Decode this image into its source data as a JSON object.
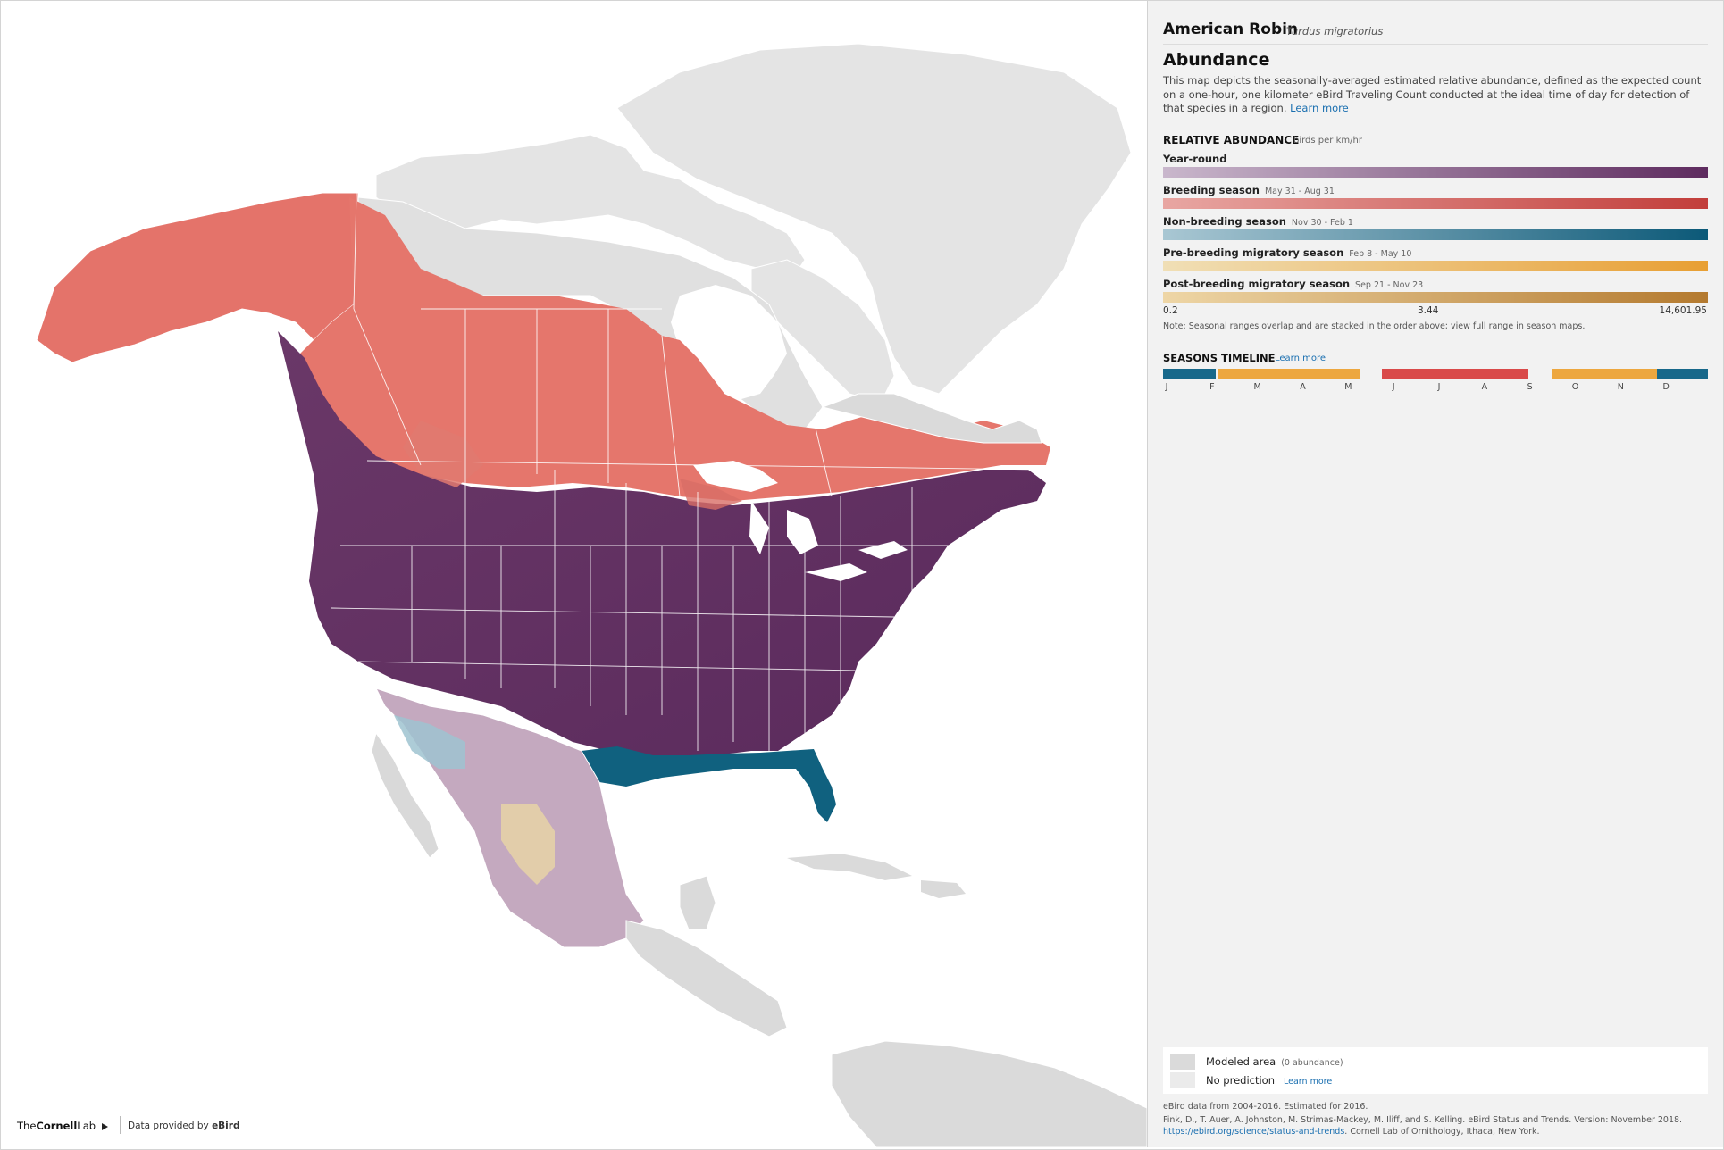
{
  "species": {
    "common_name": "American Robin",
    "scientific_name": "Turdus migratorius"
  },
  "product": {
    "title": "Abundance",
    "description": "This map depicts the seasonally-averaged estimated relative abundance, defined as the expected count on a one-hour, one kilometer eBird Traveling Count conducted at the ideal time of day for detection of that species in a region.",
    "learn_more": "Learn more"
  },
  "legend": {
    "title": "RELATIVE ABUNDANCE",
    "unit": "birds per km/hr",
    "seasons": [
      {
        "label": "Year-round",
        "dates": "",
        "color_low": "#c9b7cc",
        "color_high": "#5e2b5f"
      },
      {
        "label": "Breeding season",
        "dates": "May 31 - Aug 31",
        "color_low": "#e8a6a2",
        "color_high": "#c23e3b"
      },
      {
        "label": "Non-breeding season",
        "dates": "Nov 30 - Feb 1",
        "color_low": "#a9c7d3",
        "color_high": "#0c5978"
      },
      {
        "label": "Pre-breeding migratory season",
        "dates": "Feb 8 - May 10",
        "color_low": "#f0dfb6",
        "color_high": "#e89f33"
      },
      {
        "label": "Post-breeding migratory season",
        "dates": "Sep 21 - Nov 23",
        "color_low": "#eed6a6",
        "color_high": "#b47a2f"
      }
    ],
    "ticks": [
      "0.2",
      "3.44",
      "14,601.95"
    ],
    "note": "Note: Seasonal ranges overlap and are stacked in the order above; view full range in season maps."
  },
  "timeline": {
    "title": "SEASONS TIMELINE",
    "learn_more": "Learn more",
    "months": [
      "J",
      "F",
      "M",
      "A",
      "M",
      "J",
      "J",
      "A",
      "S",
      "O",
      "N",
      "D"
    ],
    "segments": [
      {
        "season": "Non-breeding season",
        "start_frac": 0.0,
        "end_frac": 0.096,
        "color": "#17688a"
      },
      {
        "season": "Pre-breeding migratory season",
        "start_frac": 0.101,
        "end_frac": 0.363,
        "color": "#eda73f"
      },
      {
        "season": "Breeding season",
        "start_frac": 0.402,
        "end_frac": 0.671,
        "color": "#d94a4a"
      },
      {
        "season": "Post-breeding migratory season",
        "start_frac": 0.715,
        "end_frac": 0.907,
        "color": "#eda73f"
      },
      {
        "season": "Non-breeding season",
        "start_frac": 0.907,
        "end_frac": 1.0,
        "color": "#17688a"
      }
    ]
  },
  "map_key": {
    "modeled_label": "Modeled area",
    "modeled_sub": "(0 abundance)",
    "nopred_label": "No prediction",
    "nopred_link": "Learn more",
    "modeled_color": "#dadada",
    "nopred_color": "#ebebeb"
  },
  "credits": {
    "data_range": "eBird data from 2004-2016. Estimated for 2016.",
    "citation": "Fink, D., T. Auer, A. Johnston, M. Strimas-Mackey, M. Iliff, and S. Kelling. eBird Status and Trends. Version: November 2018.",
    "url": "https://ebird.org/science/status-and-trends",
    "publisher": ". Cornell Lab of Ornithology, Ithaca, New York."
  },
  "footer": {
    "logo_prefix": "The",
    "logo_bold": "Cornell",
    "logo_suffix": "Lab",
    "provided_by": "Data provided by ",
    "provider": "eBird"
  }
}
